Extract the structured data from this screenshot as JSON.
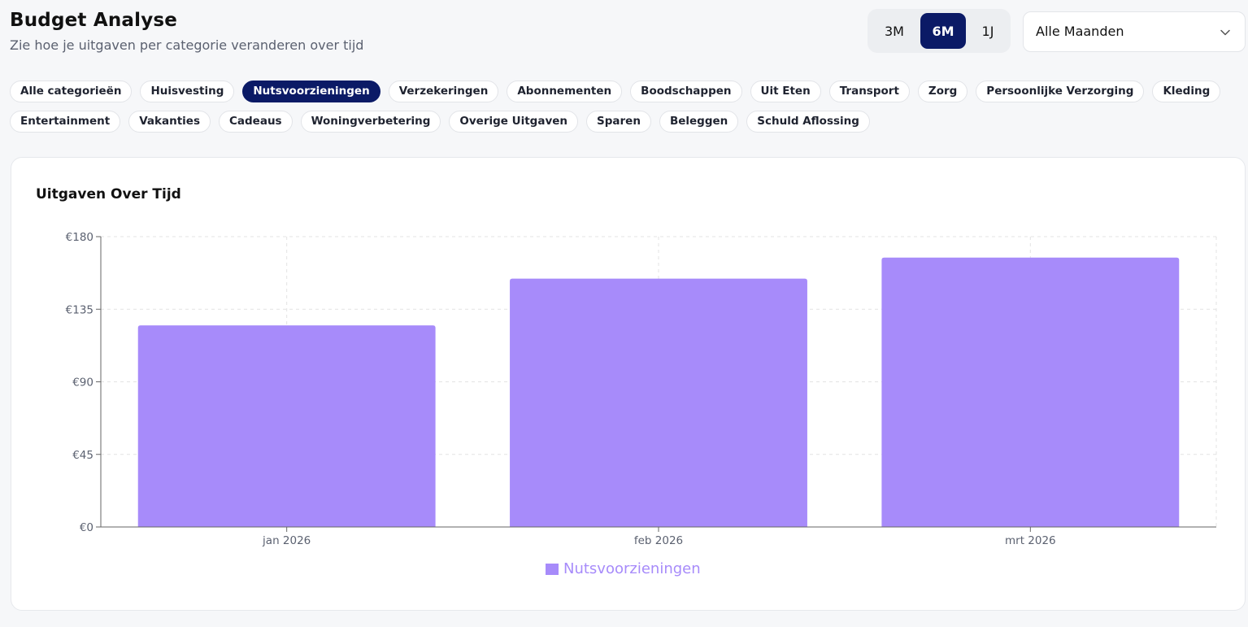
{
  "header": {
    "title": "Budget Analyse",
    "subtitle": "Zie hoe je uitgaven per categorie veranderen over tijd"
  },
  "range_toggle": {
    "options": [
      "3M",
      "6M",
      "1J"
    ],
    "selected": "6M"
  },
  "month_select": {
    "value": "Alle Maanden",
    "icon": "chevron-down-icon"
  },
  "categories": {
    "row1": [
      "Alle categorieën",
      "Huisvesting",
      "Nutsvoorzieningen",
      "Verzekeringen",
      "Abonnementen",
      "Boodschappen",
      "Uit Eten",
      "Transport",
      "Zorg",
      "Persoonlijke Verzorging",
      "Kleding"
    ],
    "row2": [
      "Entertainment",
      "Vakanties",
      "Cadeaus",
      "Woningverbetering",
      "Overige Uitgaven",
      "Sparen",
      "Beleggen",
      "Schuld Aflossing"
    ],
    "active": "Nutsvoorzieningen"
  },
  "card": {
    "title": "Uitgaven Over Tijd"
  },
  "colors": {
    "accent": "#0b1a66",
    "bar": "#a78bfa"
  },
  "chart_data": {
    "type": "bar",
    "categories": [
      "jan 2026",
      "feb 2026",
      "mrt 2026"
    ],
    "series": [
      {
        "name": "Nutsvoorzieningen",
        "values": [
          125,
          154,
          167
        ]
      }
    ],
    "ylim": [
      0,
      180
    ],
    "yticks": [
      0,
      45,
      90,
      135,
      180
    ],
    "ytick_labels": [
      "€0",
      "€45",
      "€90",
      "€135",
      "€180"
    ],
    "grid": true,
    "legend": "bottom-center"
  }
}
